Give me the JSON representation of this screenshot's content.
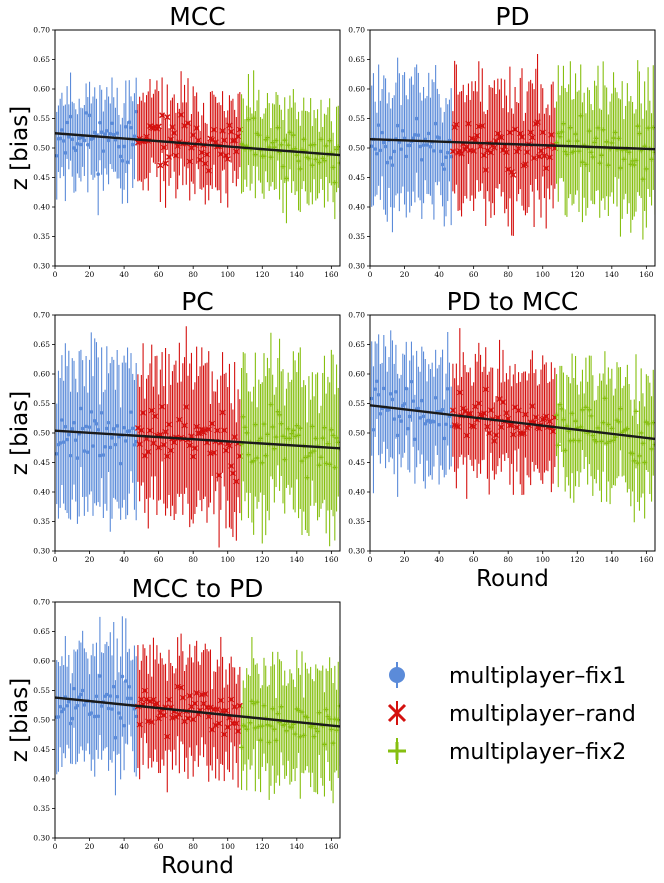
{
  "chart_data": {
    "type": "scatter",
    "ylim": [
      0.3,
      0.7
    ],
    "xlim": [
      0,
      165
    ],
    "yticks": [
      "0.30",
      "0.35",
      "0.40",
      "0.45",
      "0.50",
      "0.55",
      "0.60",
      "0.65",
      "0.70"
    ],
    "xticks": [
      "0",
      "20",
      "40",
      "60",
      "80",
      "100",
      "120",
      "140",
      "160"
    ],
    "segments": [
      {
        "name": "multiplayer–fix1",
        "color": "#5b8bd9",
        "marker": "circle",
        "x_range": [
          1,
          47
        ]
      },
      {
        "name": "multiplayer–rand",
        "color": "#d4110f",
        "marker": "cross",
        "x_range": [
          48,
          107
        ]
      },
      {
        "name": "multiplayer–fix2",
        "color": "#86bf10",
        "marker": "plus",
        "x_range": [
          108,
          165
        ]
      }
    ],
    "panels": [
      {
        "title": "MCC",
        "ylabel": "z [bias]",
        "xlabel": "",
        "center": 0.51,
        "spread": 0.055,
        "err": 0.065,
        "fit": {
          "start": 0.525,
          "end": 0.488
        },
        "seed": 11
      },
      {
        "title": "PD",
        "ylabel": "",
        "xlabel": "",
        "center": 0.51,
        "spread": 0.06,
        "err": 0.09,
        "fit": {
          "start": 0.515,
          "end": 0.498
        },
        "seed": 23
      },
      {
        "title": "PC",
        "ylabel": "z [bias]",
        "xlabel": "",
        "center": 0.49,
        "spread": 0.065,
        "err": 0.11,
        "fit": {
          "start": 0.504,
          "end": 0.474
        },
        "seed": 37
      },
      {
        "title": "PD to MCC",
        "ylabel": "",
        "xlabel": "Round",
        "center": 0.52,
        "spread": 0.055,
        "err": 0.085,
        "fit": {
          "start": 0.547,
          "end": 0.49
        },
        "seed": 41
      },
      {
        "title": "MCC to PD",
        "ylabel": "z [bias]",
        "xlabel": "Round",
        "center": 0.515,
        "spread": 0.055,
        "err": 0.085,
        "fit": {
          "start": 0.538,
          "end": 0.489
        },
        "seed": 53
      }
    ],
    "legend": {
      "location": "lower-right",
      "entries": [
        "multiplayer–fix1",
        "multiplayer–rand",
        "multiplayer–fix2"
      ]
    }
  }
}
